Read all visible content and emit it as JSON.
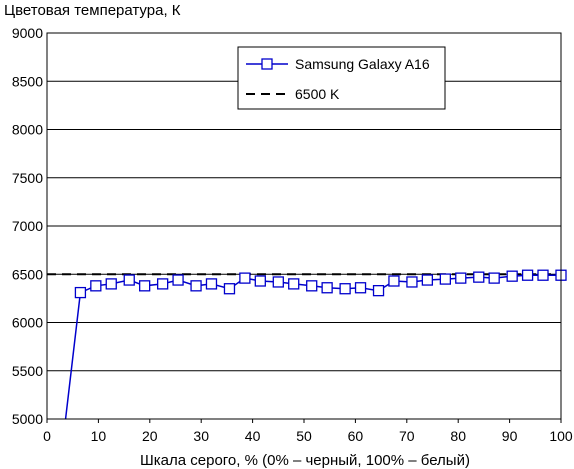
{
  "chart_data": {
    "type": "line",
    "title": "",
    "ylabel": "Цветовая температура, К",
    "xlabel": "Шкала серого, % (0% – черный, 100% – белый)",
    "xlim": [
      0,
      100
    ],
    "ylim": [
      5000,
      9000
    ],
    "xticks": [
      0,
      10,
      20,
      30,
      40,
      50,
      60,
      70,
      80,
      90,
      100
    ],
    "yticks": [
      5000,
      5500,
      6000,
      6500,
      7000,
      7500,
      8000,
      8500,
      9000
    ],
    "xtick_labels": [
      "0",
      "10",
      "20",
      "30",
      "40",
      "50",
      "60",
      "70",
      "80",
      "90",
      "100"
    ],
    "ytick_labels": [
      "5000",
      "5500",
      "6000",
      "6500",
      "7000",
      "7500",
      "8000",
      "8500",
      "9000"
    ],
    "grid": "horizontal",
    "legend_position": "top-right",
    "series": [
      {
        "name": "Samsung Galaxy A16",
        "color": "#0000cc",
        "marker": "open-square",
        "x": [
          3.5,
          6.5,
          9.5,
          12.5,
          16,
          19,
          22.5,
          25.5,
          29,
          32,
          35.5,
          38.5,
          41.5,
          45,
          48,
          51.5,
          54.5,
          58,
          61,
          64.5,
          67.5,
          71,
          74,
          77.5,
          80.5,
          84,
          87,
          90.5,
          93.5,
          96.5,
          100
        ],
        "y": [
          4950,
          6310,
          6380,
          6400,
          6440,
          6380,
          6400,
          6440,
          6380,
          6400,
          6350,
          6460,
          6430,
          6420,
          6400,
          6380,
          6360,
          6350,
          6360,
          6330,
          6430,
          6420,
          6440,
          6450,
          6460,
          6470,
          6460,
          6480,
          6490,
          6490,
          6490
        ],
        "marker_from_index": 1
      },
      {
        "name": "6500 K",
        "color": "#000000",
        "style": "dashed",
        "x": [
          0,
          100
        ],
        "y": [
          6500,
          6500
        ]
      }
    ]
  }
}
